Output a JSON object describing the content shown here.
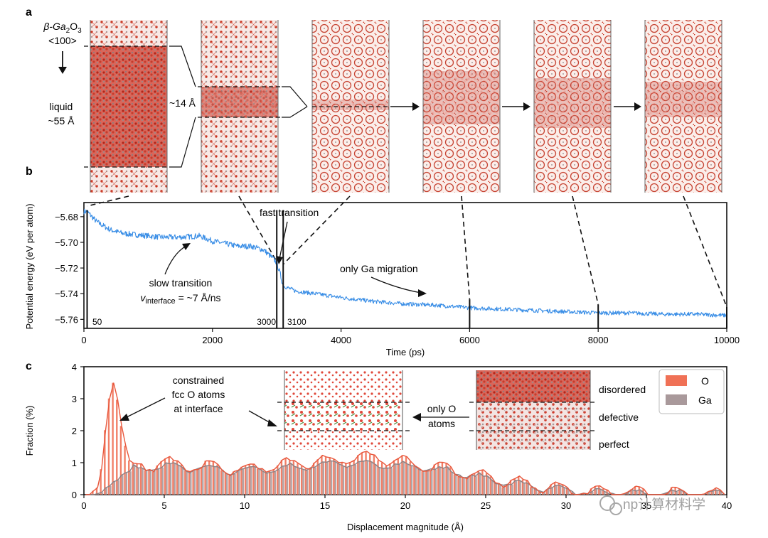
{
  "panel_a": {
    "label": "a",
    "crystal_label": "β-Ga2O3",
    "crystal_base": "β-Ga",
    "crystal_sub2": "2",
    "crystal_o": "O",
    "crystal_sub3": "3",
    "direction": "<100>",
    "liquid_label": "liquid",
    "liquid_size": "~55 Å",
    "interface_label": "~14 Å",
    "snapshot_count": 6
  },
  "panel_b": {
    "label": "b",
    "annotations": {
      "fast": "fast transition",
      "slow": "slow transition",
      "v_main": "v",
      "v_sub": "interface",
      "v_value": " = ~7 Å/ns",
      "ga_only": "only Ga migration"
    },
    "marker_labels": [
      "50",
      "3000",
      "3100"
    ],
    "chart_data": {
      "type": "line",
      "title": "",
      "xlabel": "Time (ps)",
      "ylabel": "Potential energy (eV per atom)",
      "xlim": [
        0,
        10000
      ],
      "ylim": [
        -5.767,
        -5.669
      ],
      "xticks": [
        0,
        2000,
        4000,
        6000,
        8000,
        10000
      ],
      "yticks": [
        -5.68,
        -5.7,
        -5.72,
        -5.74,
        -5.76
      ],
      "ytick_labels": [
        "−5.68",
        "−5.70",
        "−5.72",
        "−5.74",
        "−5.76"
      ],
      "series": [
        {
          "color": "#3a8ee6",
          "x": [
            0,
            50,
            200,
            400,
            600,
            800,
            1000,
            1200,
            1500,
            1800,
            2000,
            2200,
            2400,
            2600,
            2800,
            2950,
            3000,
            3050,
            3100,
            3300,
            3600,
            4000,
            4500,
            5000,
            5500,
            6000,
            6500,
            7000,
            7500,
            8000,
            8500,
            9000,
            9500,
            10000
          ],
          "y": [
            -5.676,
            -5.676,
            -5.684,
            -5.69,
            -5.693,
            -5.694,
            -5.695,
            -5.696,
            -5.696,
            -5.695,
            -5.699,
            -5.701,
            -5.703,
            -5.703,
            -5.706,
            -5.713,
            -5.716,
            -5.724,
            -5.734,
            -5.738,
            -5.74,
            -5.743,
            -5.746,
            -5.748,
            -5.749,
            -5.751,
            -5.752,
            -5.753,
            -5.754,
            -5.755,
            -5.755,
            -5.756,
            -5.756,
            -5.757
          ]
        }
      ],
      "vertical_markers": [
        50,
        3000,
        3100,
        6000,
        8000,
        10000
      ],
      "grid": false
    }
  },
  "panel_c": {
    "label": "c",
    "annotations": {
      "constrained_1": "constrained",
      "constrained_2": "fcc O atoms",
      "constrained_3": "at interface",
      "only_o_1": "only O",
      "only_o_2": "atoms",
      "disordered": "disordered",
      "defective": "defective",
      "perfect": "perfect"
    },
    "watermark": "np计算材料学",
    "chart_data": {
      "type": "bar",
      "title": "",
      "xlabel": "Displacement magnitude (Å)",
      "ylabel": "Fraction (%)",
      "xlim": [
        0,
        40
      ],
      "ylim": [
        0,
        4
      ],
      "xticks": [
        0,
        5,
        10,
        15,
        20,
        25,
        30,
        35,
        40
      ],
      "yticks": [
        0,
        1,
        2,
        3,
        4
      ],
      "legend_position": "top-right",
      "series": [
        {
          "name": "O",
          "color": "#f07156",
          "x": [
            0.5,
            1.0,
            1.5,
            1.8,
            2.0,
            2.5,
            3.0,
            3.5,
            4.0,
            5.0,
            6.0,
            8.0,
            10.0,
            12.0,
            14.0,
            16.0,
            18.0,
            20.0,
            22.0,
            24.0,
            26.0,
            28.0,
            30.0,
            32.0,
            34.0,
            36.0,
            38.0,
            40.0
          ],
          "y": [
            0.02,
            0.3,
            2.8,
            3.55,
            3.3,
            1.7,
            0.8,
            0.95,
            0.9,
            1.0,
            0.9,
            0.85,
            0.8,
            0.9,
            1.0,
            1.1,
            1.2,
            1.0,
            0.85,
            0.65,
            0.45,
            0.3,
            0.15,
            0.1,
            0.08,
            0.05,
            0.03,
            0.02
          ]
        },
        {
          "name": "Ga",
          "color": "#a9999b",
          "x": [
            0.5,
            1.0,
            1.5,
            1.8,
            2.0,
            2.5,
            3.0,
            3.5,
            4.0,
            5.0,
            6.0,
            8.0,
            10.0,
            12.0,
            14.0,
            16.0,
            18.0,
            20.0,
            22.0,
            24.0,
            26.0,
            28.0,
            30.0,
            32.0,
            34.0,
            36.0,
            38.0,
            40.0
          ],
          "y": [
            0.0,
            0.05,
            0.25,
            0.35,
            0.45,
            0.65,
            0.8,
            0.8,
            0.85,
            0.9,
            0.85,
            0.8,
            0.75,
            0.8,
            0.9,
            1.0,
            0.95,
            0.9,
            0.8,
            0.6,
            0.4,
            0.25,
            0.12,
            0.08,
            0.05,
            0.03,
            0.02,
            0.01
          ]
        }
      ]
    }
  }
}
